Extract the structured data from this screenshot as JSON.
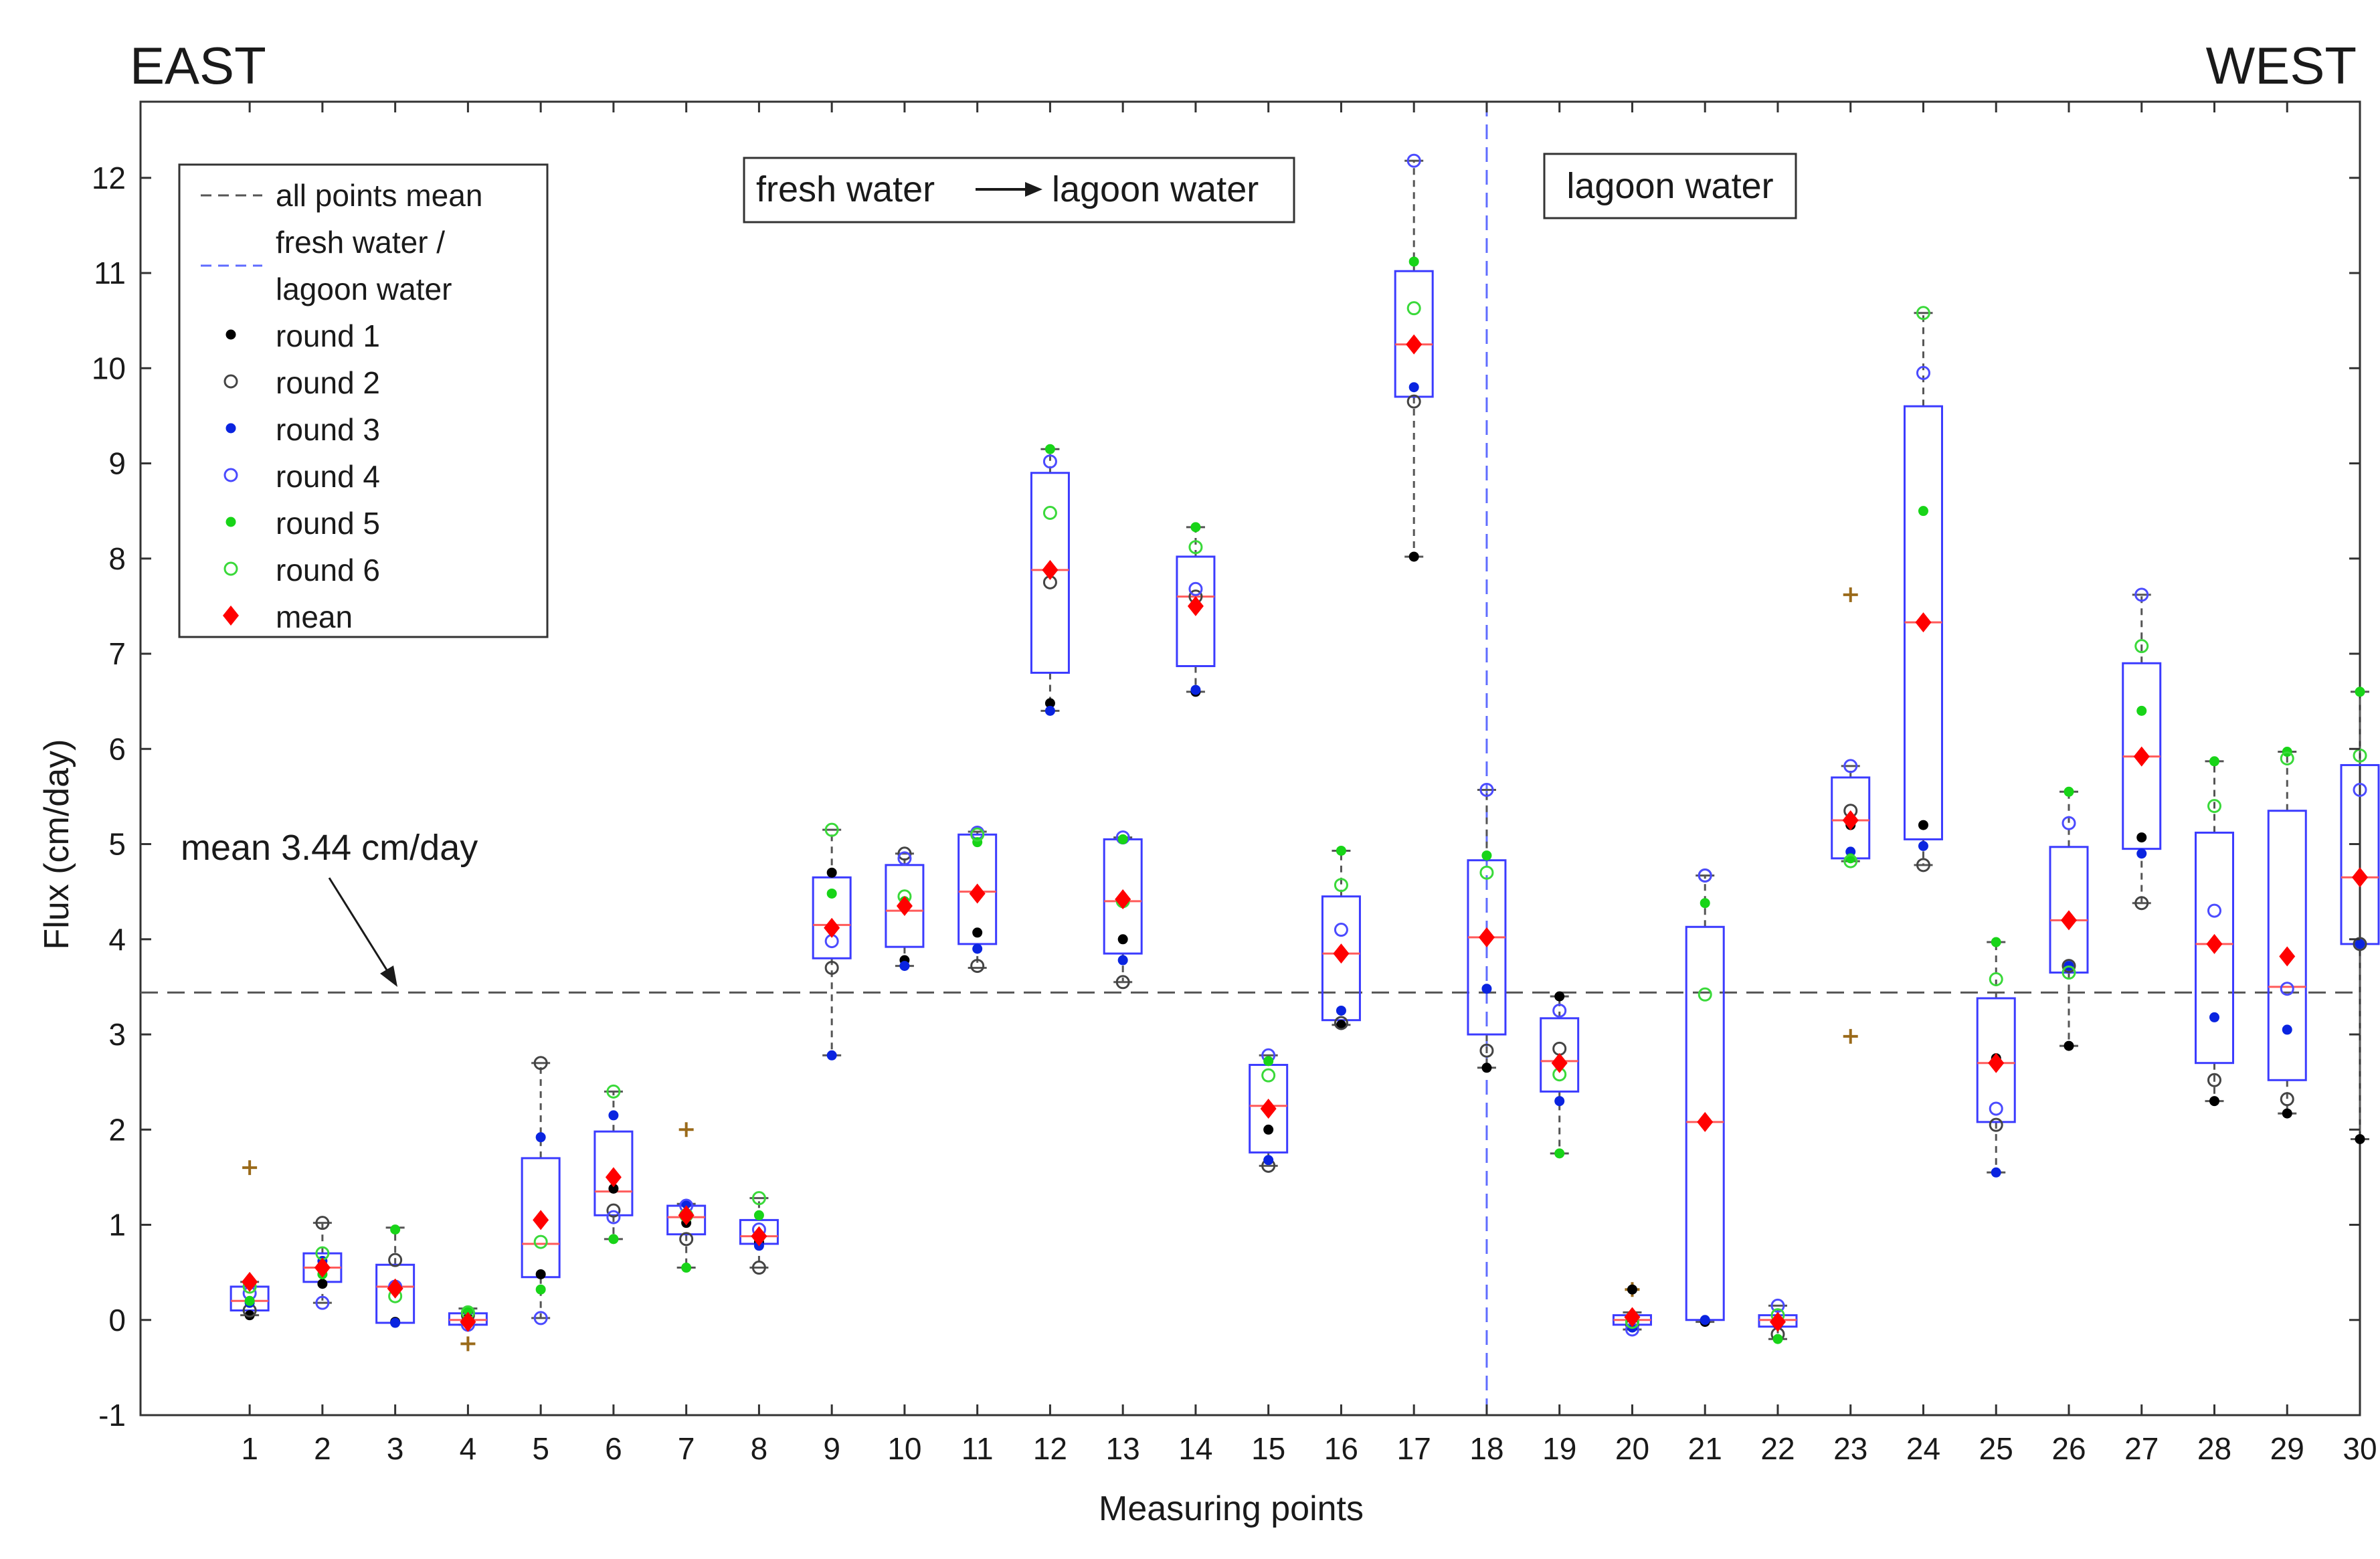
{
  "chart_data": {
    "type": "box",
    "xlabel": "Measuring points",
    "ylabel": "Flux (cm/day)",
    "ylim": [
      -1,
      12.8
    ],
    "yticks": [
      -1,
      0,
      1,
      2,
      3,
      4,
      5,
      6,
      7,
      8,
      9,
      10,
      11,
      12
    ],
    "categories": [
      "1",
      "2",
      "3",
      "4",
      "5",
      "6",
      "7",
      "8",
      "9",
      "10",
      "11",
      "12",
      "13",
      "14",
      "15",
      "16",
      "17",
      "18",
      "19",
      "20",
      "21",
      "22",
      "23",
      "24",
      "25",
      "26",
      "27",
      "28",
      "29",
      "30"
    ],
    "corner_labels": {
      "left": "EAST",
      "right": "WEST"
    },
    "annotations": {
      "mean_text": "mean 3.44 cm/day",
      "fresh_to_lagoon_left": "fresh water",
      "fresh_to_lagoon_right": "lagoon water",
      "lagoon_only": "lagoon water"
    },
    "reference_lines": {
      "all_points_mean": 3.44,
      "fresh_lagoon_boundary_point": 18
    },
    "legend": {
      "placement": "top-left",
      "entries": [
        {
          "key": "all_mean",
          "lines": [
            "all points mean"
          ]
        },
        {
          "key": "boundary",
          "lines": [
            "fresh water /",
            "lagoon water"
          ]
        },
        {
          "key": "r1",
          "lines": [
            "round 1"
          ]
        },
        {
          "key": "r2",
          "lines": [
            "round 2"
          ]
        },
        {
          "key": "r3",
          "lines": [
            "round 3"
          ]
        },
        {
          "key": "r4",
          "lines": [
            "round 4"
          ]
        },
        {
          "key": "r5",
          "lines": [
            "round 5"
          ]
        },
        {
          "key": "r6",
          "lines": [
            "round 6"
          ]
        },
        {
          "key": "mean",
          "lines": [
            "mean"
          ]
        }
      ]
    },
    "colors": {
      "box": "#3b3bff",
      "median": "#ff5a5a",
      "whisker": "#555555",
      "mean_line": "#555555",
      "boundary_line": "#5f6cff",
      "r1": "#000000",
      "r2": "#444444",
      "r3": "#0a24e0",
      "r4": "#4b4bff",
      "r5": "#18d418",
      "r6": "#3ad93a",
      "mean_marker": "#ff0000",
      "outlier": "#9a6a1a"
    },
    "boxes": [
      {
        "point": 1,
        "q1": 0.1,
        "median": 0.2,
        "q3": 0.35,
        "wlow": 0.05,
        "whigh": 0.4,
        "mean": 0.4,
        "outliers": [
          1.6
        ]
      },
      {
        "point": 2,
        "q1": 0.4,
        "median": 0.55,
        "q3": 0.7,
        "wlow": 0.18,
        "whigh": 1.02,
        "mean": 0.55,
        "outliers": []
      },
      {
        "point": 3,
        "q1": -0.03,
        "median": 0.35,
        "q3": 0.58,
        "wlow": -0.03,
        "whigh": 0.97,
        "mean": 0.33,
        "outliers": []
      },
      {
        "point": 4,
        "q1": -0.05,
        "median": 0.0,
        "q3": 0.07,
        "wlow": -0.05,
        "whigh": 0.12,
        "mean": -0.02,
        "outliers": [
          -0.25
        ]
      },
      {
        "point": 5,
        "q1": 0.45,
        "median": 0.8,
        "q3": 1.7,
        "wlow": 0.02,
        "whigh": 2.7,
        "mean": 1.05,
        "outliers": []
      },
      {
        "point": 6,
        "q1": 1.1,
        "median": 1.35,
        "q3": 1.98,
        "wlow": 0.85,
        "whigh": 2.4,
        "mean": 1.5,
        "outliers": []
      },
      {
        "point": 7,
        "q1": 0.9,
        "median": 1.08,
        "q3": 1.2,
        "wlow": 0.55,
        "whigh": 1.22,
        "mean": 1.1,
        "outliers": [
          2.0
        ]
      },
      {
        "point": 8,
        "q1": 0.8,
        "median": 0.88,
        "q3": 1.05,
        "wlow": 0.55,
        "whigh": 1.28,
        "mean": 0.88,
        "outliers": []
      },
      {
        "point": 9,
        "q1": 3.8,
        "median": 4.15,
        "q3": 4.65,
        "wlow": 2.78,
        "whigh": 5.15,
        "mean": 4.12,
        "outliers": []
      },
      {
        "point": 10,
        "q1": 3.92,
        "median": 4.3,
        "q3": 4.78,
        "wlow": 3.72,
        "whigh": 4.9,
        "mean": 4.35,
        "outliers": []
      },
      {
        "point": 11,
        "q1": 3.95,
        "median": 4.5,
        "q3": 5.1,
        "wlow": 3.7,
        "whigh": 5.13,
        "mean": 4.48,
        "outliers": []
      },
      {
        "point": 12,
        "q1": 6.8,
        "median": 7.88,
        "q3": 8.9,
        "wlow": 6.4,
        "whigh": 9.15,
        "mean": 7.88,
        "outliers": []
      },
      {
        "point": 13,
        "q1": 3.85,
        "median": 4.4,
        "q3": 5.05,
        "wlow": 3.55,
        "whigh": 5.07,
        "mean": 4.42,
        "outliers": []
      },
      {
        "point": 14,
        "q1": 6.87,
        "median": 7.6,
        "q3": 8.02,
        "wlow": 6.6,
        "whigh": 8.33,
        "mean": 7.5,
        "outliers": []
      },
      {
        "point": 15,
        "q1": 1.76,
        "median": 2.25,
        "q3": 2.68,
        "wlow": 1.62,
        "whigh": 2.78,
        "mean": 2.22,
        "outliers": []
      },
      {
        "point": 16,
        "q1": 3.15,
        "median": 3.85,
        "q3": 4.45,
        "wlow": 3.1,
        "whigh": 4.93,
        "mean": 3.85,
        "outliers": []
      },
      {
        "point": 17,
        "q1": 9.7,
        "median": 10.25,
        "q3": 11.02,
        "wlow": 8.02,
        "whigh": 12.18,
        "mean": 10.25,
        "outliers": []
      },
      {
        "point": 18,
        "q1": 3.0,
        "median": 4.02,
        "q3": 4.83,
        "wlow": 2.65,
        "whigh": 5.57,
        "mean": 4.02,
        "outliers": []
      },
      {
        "point": 19,
        "q1": 2.4,
        "median": 2.72,
        "q3": 3.17,
        "wlow": 1.75,
        "whigh": 3.4,
        "mean": 2.7,
        "outliers": []
      },
      {
        "point": 20,
        "q1": -0.05,
        "median": 0.0,
        "q3": 0.05,
        "wlow": -0.1,
        "whigh": 0.08,
        "mean": 0.03,
        "outliers": [
          0.32
        ]
      },
      {
        "point": 21,
        "q1": 0.0,
        "median": 2.08,
        "q3": 4.13,
        "wlow": -0.02,
        "whigh": 4.67,
        "mean": 2.08,
        "outliers": []
      },
      {
        "point": 22,
        "q1": -0.07,
        "median": 0.0,
        "q3": 0.05,
        "wlow": -0.2,
        "whigh": 0.15,
        "mean": -0.02,
        "outliers": []
      },
      {
        "point": 23,
        "q1": 4.85,
        "median": 5.25,
        "q3": 5.7,
        "wlow": 4.82,
        "whigh": 5.82,
        "mean": 5.25,
        "outliers": [
          7.62,
          2.98
        ]
      },
      {
        "point": 24,
        "q1": 5.05,
        "median": 7.33,
        "q3": 9.6,
        "wlow": 4.78,
        "whigh": 10.58,
        "mean": 7.33,
        "outliers": []
      },
      {
        "point": 25,
        "q1": 2.08,
        "median": 2.7,
        "q3": 3.38,
        "wlow": 1.55,
        "whigh": 3.97,
        "mean": 2.7,
        "outliers": []
      },
      {
        "point": 26,
        "q1": 3.65,
        "median": 4.2,
        "q3": 4.97,
        "wlow": 2.88,
        "whigh": 5.55,
        "mean": 4.2,
        "outliers": []
      },
      {
        "point": 27,
        "q1": 4.95,
        "median": 5.92,
        "q3": 6.9,
        "wlow": 4.38,
        "whigh": 7.62,
        "mean": 5.92,
        "outliers": []
      },
      {
        "point": 28,
        "q1": 2.7,
        "median": 3.95,
        "q3": 5.12,
        "wlow": 2.3,
        "whigh": 5.87,
        "mean": 3.95,
        "outliers": []
      },
      {
        "point": 29,
        "q1": 2.52,
        "median": 3.5,
        "q3": 5.35,
        "wlow": 2.17,
        "whigh": 5.97,
        "mean": 3.82,
        "outliers": []
      },
      {
        "point": 30,
        "q1": 3.95,
        "median": 4.65,
        "q3": 5.83,
        "wlow": 1.9,
        "whigh": 6.6,
        "mean": 4.65,
        "outliers": []
      }
    ],
    "rounds": [
      {
        "point": 1,
        "r1": 0.05,
        "r2": 0.1,
        "r3": 0.18,
        "r4": 0.28,
        "r5": 0.2,
        "r6": 0.35
      },
      {
        "point": 2,
        "r1": 0.38,
        "r2": 1.02,
        "r3": 0.62,
        "r4": 0.18,
        "r5": 0.48,
        "r6": 0.7
      },
      {
        "point": 3,
        "r1": -0.02,
        "r2": 0.63,
        "r3": -0.03,
        "r4": 0.35,
        "r5": 0.95,
        "r6": 0.25
      },
      {
        "point": 4,
        "r1": 0.02,
        "r2": 0.05,
        "r3": -0.03,
        "r4": -0.05,
        "r5": 0.1,
        "r6": 0.08
      },
      {
        "point": 5,
        "r1": 0.48,
        "r2": 2.7,
        "r3": 1.92,
        "r4": 0.02,
        "r5": 0.32,
        "r6": 0.82
      },
      {
        "point": 6,
        "r1": 1.38,
        "r2": 1.15,
        "r3": 2.15,
        "r4": 1.08,
        "r5": 0.85,
        "r6": 2.4
      },
      {
        "point": 7,
        "r1": 1.02,
        "r2": 0.85,
        "r3": 1.22,
        "r4": 1.2,
        "r5": 0.55,
        "r6": 1.1
      },
      {
        "point": 8,
        "r1": 0.82,
        "r2": 0.55,
        "r3": 0.78,
        "r4": 0.95,
        "r5": 1.1,
        "r6": 1.28
      },
      {
        "point": 9,
        "r1": 4.7,
        "r2": 3.7,
        "r3": 2.78,
        "r4": 3.98,
        "r5": 4.48,
        "r6": 5.15
      },
      {
        "point": 10,
        "r1": 3.78,
        "r2": 4.9,
        "r3": 3.72,
        "r4": 4.85,
        "r5": 4.4,
        "r6": 4.45
      },
      {
        "point": 11,
        "r1": 4.07,
        "r2": 3.72,
        "r3": 3.9,
        "r4": 5.12,
        "r5": 5.02,
        "r6": 5.1
      },
      {
        "point": 12,
        "r1": 6.48,
        "r2": 7.75,
        "r3": 6.4,
        "r4": 9.02,
        "r5": 9.15,
        "r6": 8.48
      },
      {
        "point": 13,
        "r1": 4.0,
        "r2": 3.55,
        "r3": 3.78,
        "r4": 5.07,
        "r5": 5.05,
        "r6": 4.4
      },
      {
        "point": 14,
        "r1": 6.6,
        "r2": 7.6,
        "r3": 6.62,
        "r4": 7.68,
        "r5": 8.33,
        "r6": 8.12
      },
      {
        "point": 15,
        "r1": 2.0,
        "r2": 1.62,
        "r3": 1.68,
        "r4": 2.78,
        "r5": 2.72,
        "r6": 2.57
      },
      {
        "point": 16,
        "r1": 3.1,
        "r2": 3.12,
        "r3": 3.25,
        "r4": 4.1,
        "r5": 4.93,
        "r6": 4.57
      },
      {
        "point": 17,
        "r1": 8.02,
        "r2": 9.65,
        "r3": 9.8,
        "r4": 12.18,
        "r5": 11.12,
        "r6": 10.63
      },
      {
        "point": 18,
        "r1": 2.65,
        "r2": 2.83,
        "r3": 3.48,
        "r4": 5.57,
        "r5": 4.88,
        "r6": 4.7
      },
      {
        "point": 19,
        "r1": 3.4,
        "r2": 2.85,
        "r3": 2.3,
        "r4": 3.25,
        "r5": 1.75,
        "r6": 2.58
      },
      {
        "point": 20,
        "r1": 0.32,
        "r2": -0.05,
        "r3": -0.08,
        "r4": -0.1,
        "r5": 0.05,
        "r6": -0.02
      },
      {
        "point": 21,
        "r1": -0.02,
        "r2": 4.67,
        "r3": 0.0,
        "r4": 4.67,
        "r5": 4.38,
        "r6": 3.42
      },
      {
        "point": 22,
        "r1": -0.02,
        "r2": -0.15,
        "r3": -0.05,
        "r4": 0.15,
        "r5": -0.2,
        "r6": 0.05
      },
      {
        "point": 23,
        "r1": 5.2,
        "r2": 5.35,
        "r3": 4.92,
        "r4": 5.82,
        "r5": 4.85,
        "r6": 4.82
      },
      {
        "point": 24,
        "r1": 5.2,
        "r2": 4.78,
        "r3": 4.98,
        "r4": 9.95,
        "r5": 8.5,
        "r6": 10.58
      },
      {
        "point": 25,
        "r1": 2.75,
        "r2": 2.05,
        "r3": 1.55,
        "r4": 2.22,
        "r5": 3.97,
        "r6": 3.58
      },
      {
        "point": 26,
        "r1": 2.88,
        "r2": 3.72,
        "r3": 3.72,
        "r4": 5.22,
        "r5": 5.55,
        "r6": 3.65
      },
      {
        "point": 27,
        "r1": 5.07,
        "r2": 4.38,
        "r3": 4.9,
        "r4": 7.62,
        "r5": 6.4,
        "r6": 7.08
      },
      {
        "point": 28,
        "r1": 2.3,
        "r2": 2.52,
        "r3": 3.18,
        "r4": 4.3,
        "r5": 5.87,
        "r6": 5.4
      },
      {
        "point": 29,
        "r1": 2.17,
        "r2": 2.32,
        "r3": 3.05,
        "r4": 3.48,
        "r5": 5.97,
        "r6": 5.9
      },
      {
        "point": 30,
        "r1": 1.9,
        "r2": 3.95,
        "r3": 3.95,
        "r4": 5.57,
        "r5": 6.6,
        "r6": 5.93
      }
    ]
  }
}
